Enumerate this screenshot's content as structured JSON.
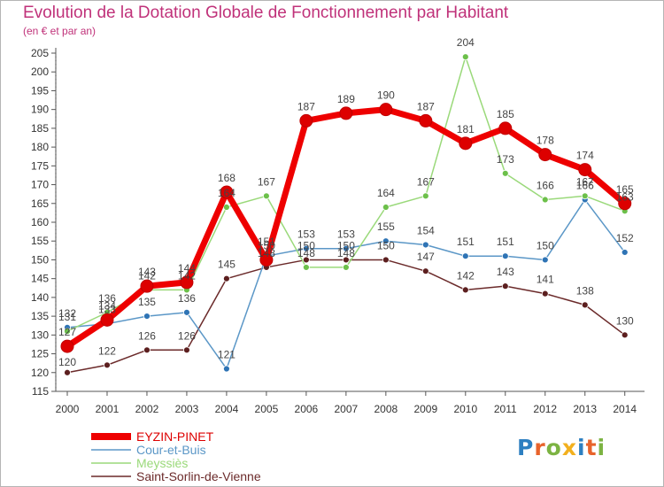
{
  "title": "Evolution de la Dotation Globale de Fonctionnement par Habitant",
  "subtitle": "(en € et par an)",
  "logo": {
    "text": "Proxiti",
    "colors": [
      "#2d7fc1",
      "#e8632b",
      "#7cb342",
      "#f2b01e",
      "#2d7fc1",
      "#e8632b",
      "#7cb342"
    ]
  },
  "chart_data": {
    "type": "line",
    "x": [
      "2000",
      "2001",
      "2002",
      "2003",
      "2004",
      "2005",
      "2006",
      "2007",
      "2008",
      "2009",
      "2010",
      "2011",
      "2012",
      "2013",
      "2014"
    ],
    "ylim": [
      115,
      205
    ],
    "yticks": [
      115,
      120,
      125,
      130,
      135,
      140,
      145,
      150,
      155,
      160,
      165,
      170,
      175,
      180,
      185,
      190,
      195,
      200,
      205
    ],
    "grid": false,
    "legend": "bottom-left",
    "series": [
      {
        "name": "Saint-Sorlin-de-Vienne",
        "color": "#6b2a2a",
        "dot": "#5c1f1f",
        "values": [
          120,
          122,
          126,
          126,
          145,
          148,
          150,
          150,
          150,
          147,
          142,
          143,
          141,
          138,
          130
        ],
        "labels": [
          "120",
          "122",
          "126",
          "126",
          "145",
          "148",
          "150",
          "150",
          "150",
          "147",
          "142",
          "143",
          "141",
          "138",
          "130"
        ]
      },
      {
        "name": "Cour-et-Buis",
        "color": "#5b97c7",
        "dot": "#2f74b5",
        "values": [
          132,
          133,
          135,
          136,
          121,
          151,
          153,
          153,
          155,
          154,
          151,
          151,
          150,
          166,
          152
        ],
        "labels": [
          "132",
          "133",
          "135",
          "136",
          "121",
          "151",
          "153",
          "153",
          "155",
          "154",
          "151",
          "151",
          "150",
          "166",
          "152"
        ]
      },
      {
        "name": "Meyssiès",
        "color": "#9ad97a",
        "dot": "#6cc04a",
        "values": [
          131,
          136,
          142,
          142,
          164,
          167,
          148,
          148,
          164,
          167,
          204,
          173,
          166,
          167,
          163
        ],
        "labels": [
          "131",
          "136",
          "142",
          "142",
          "164",
          "167",
          "148",
          "148",
          "164",
          "167",
          "204",
          "173",
          "166",
          "167",
          "163"
        ]
      },
      {
        "name": "EYZIN-PINET",
        "color": "#ee0000",
        "dot": "#dd0000",
        "values": [
          127,
          134,
          143,
          144,
          168,
          150,
          187,
          189,
          190,
          187,
          181,
          185,
          178,
          174,
          165
        ],
        "labels": [
          "127",
          "134",
          "143",
          "144",
          "168",
          "150",
          "187",
          "189",
          "190",
          "187",
          "181",
          "185",
          "178",
          "174",
          "165"
        ]
      }
    ]
  }
}
